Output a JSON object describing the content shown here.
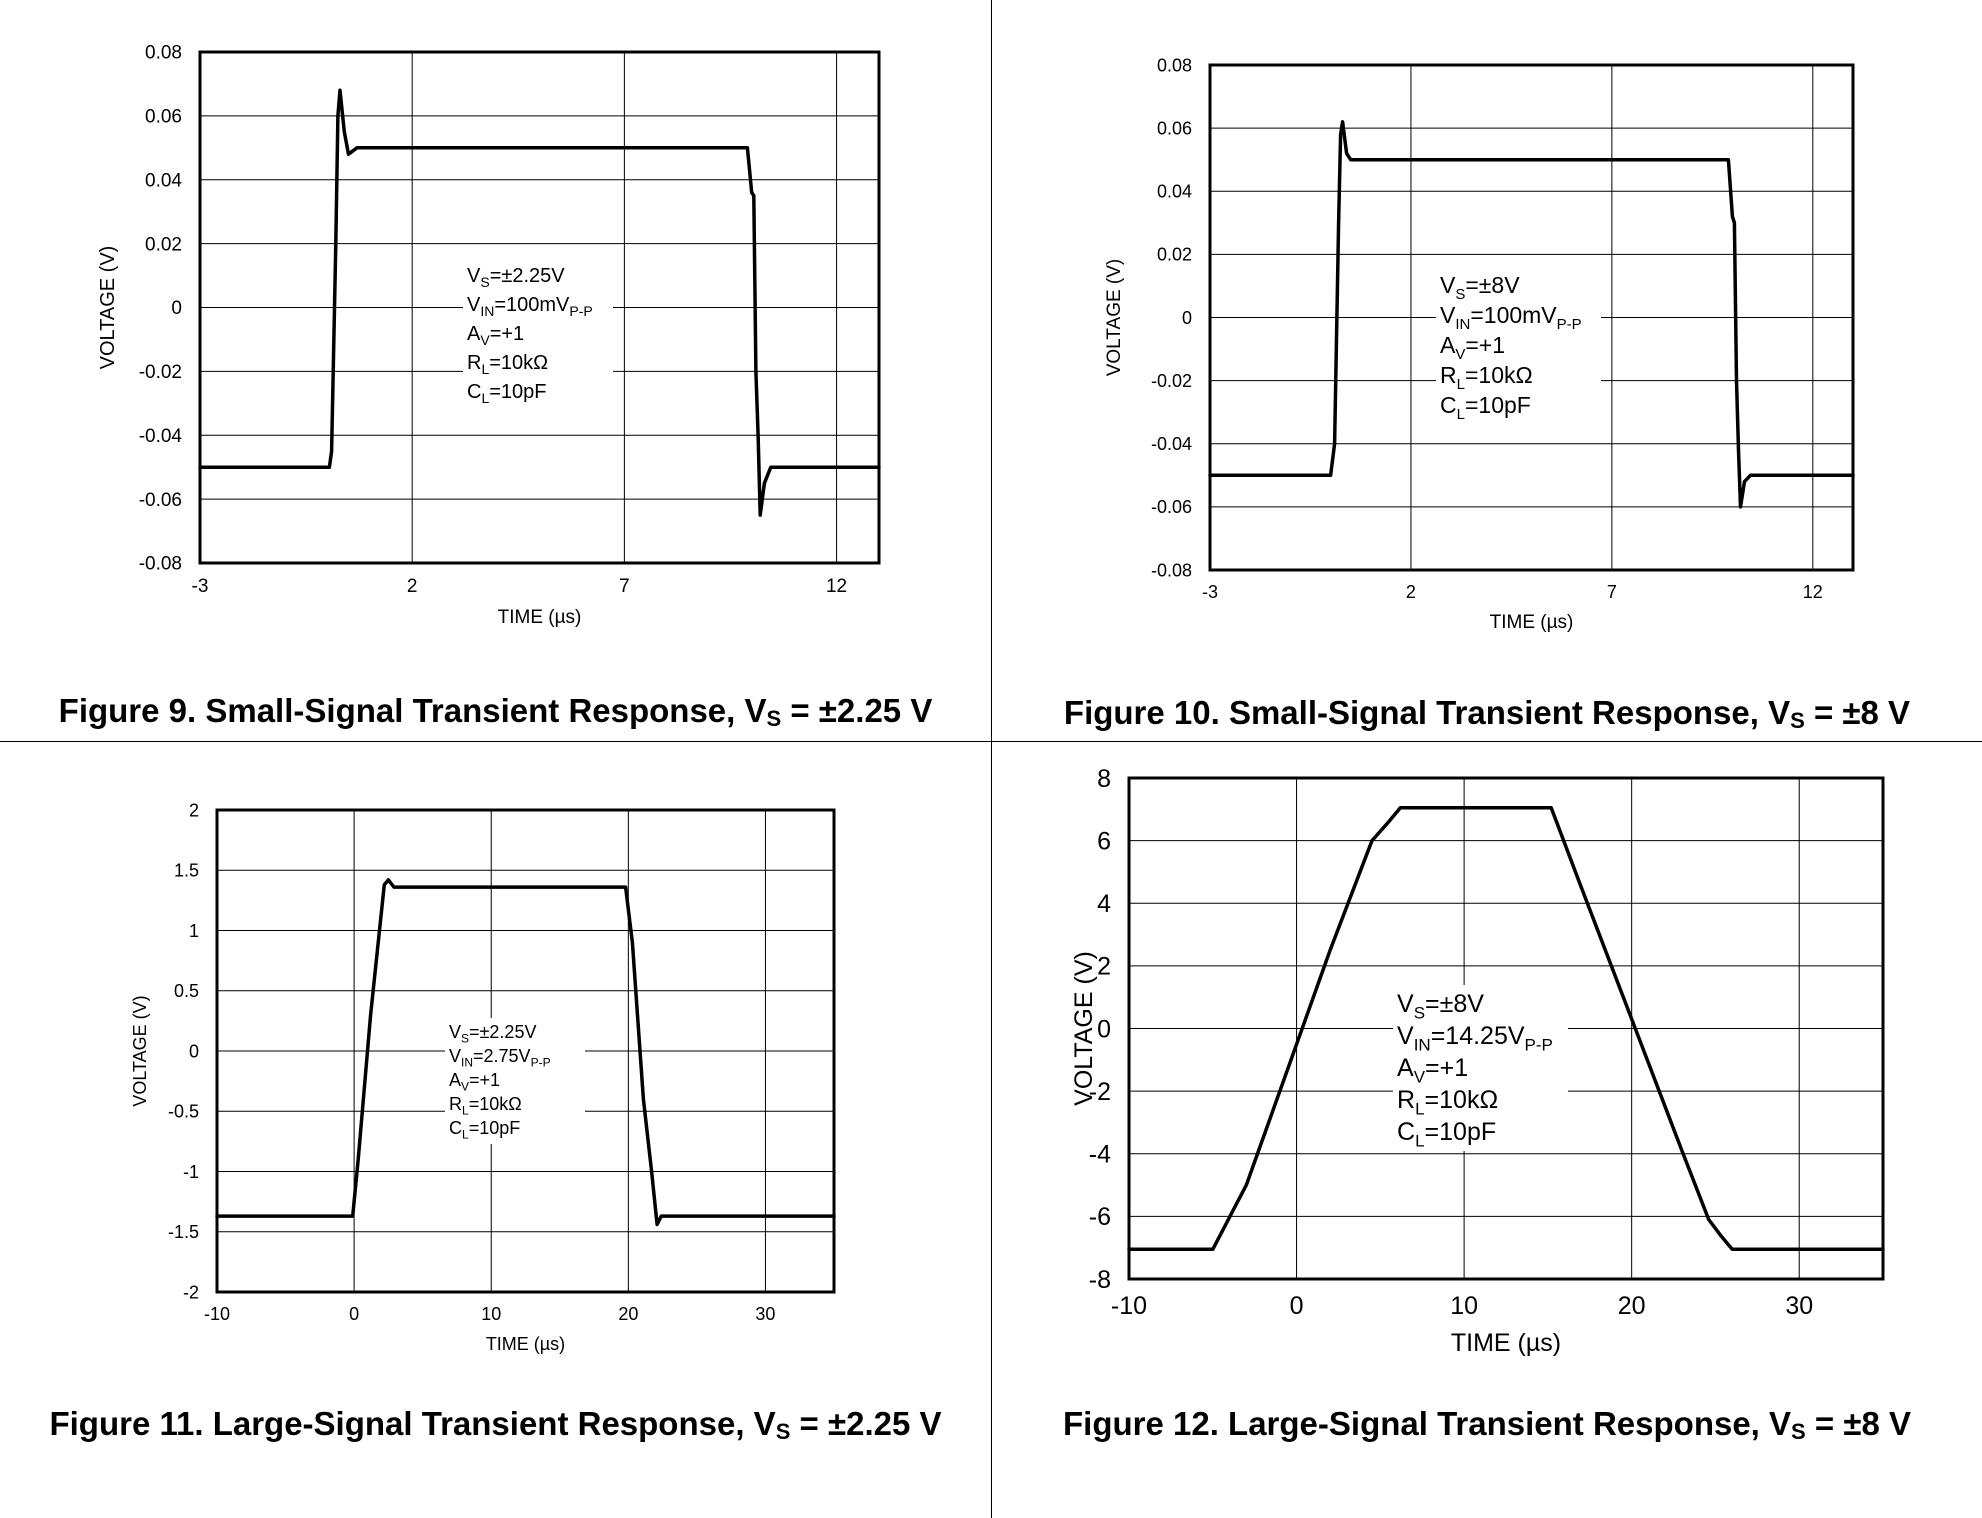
{
  "captions": [
    {
      "prefix": "Figure 9. Small-Signal Transient Response, V",
      "sub": "S",
      "suffix": " = ±2.25 V"
    },
    {
      "prefix": "Figure 10. Small-Signal Transient Response, V",
      "sub": "S",
      "suffix": " = ±8 V"
    },
    {
      "prefix": "Figure 11. Large-Signal Transient Response, V",
      "sub": "S",
      "suffix": " = ±2.25 V"
    },
    {
      "prefix": "Figure 12. Large-Signal Transient Response, V",
      "sub": "S",
      "suffix": " = ±8 V"
    }
  ],
  "chart_data": [
    {
      "type": "line",
      "xlabel": "TIME (µs)",
      "ylabel": "VOLTAGE (V)",
      "xlim": [
        -3,
        13
      ],
      "ylim": [
        -0.08,
        0.08
      ],
      "xticks": [
        -3,
        2,
        7,
        12
      ],
      "xtick_labels": [
        "-3",
        "2",
        "7",
        "12"
      ],
      "yticks": [
        -0.08,
        -0.06,
        -0.04,
        -0.02,
        0,
        0.02,
        0.04,
        0.06,
        0.08
      ],
      "ytick_labels": [
        "-0.08",
        "-0.06",
        "-0.04",
        "-0.02",
        "0",
        "0.02",
        "0.04",
        "0.06",
        "0.08"
      ],
      "grid": true,
      "annotation": [
        {
          "main": "V",
          "sub": "S",
          "rest": "=±2.25V"
        },
        {
          "main": "V",
          "sub": "IN",
          "rest": "=100mV",
          "sub2": "P-P"
        },
        {
          "main": "A",
          "sub": "V",
          "rest": "=+1"
        },
        {
          "main": "R",
          "sub": "L",
          "rest": "=10kΩ"
        },
        {
          "main": "C",
          "sub": "L",
          "rest": "=10pF"
        }
      ],
      "series": [
        {
          "x": [
            -3,
            0.05,
            0.1,
            0.2,
            0.25,
            0.3,
            0.4,
            0.5,
            0.7,
            1.0,
            3.0,
            5.0,
            7.0,
            9.0,
            9.9,
            10.0,
            10.05,
            10.1,
            10.15,
            10.2,
            10.3,
            10.45,
            10.6,
            11,
            13
          ],
          "y": [
            -0.05,
            -0.05,
            -0.045,
            0.02,
            0.06,
            0.068,
            0.055,
            0.048,
            0.05,
            0.05,
            0.05,
            0.05,
            0.05,
            0.05,
            0.05,
            0.036,
            0.035,
            -0.02,
            -0.04,
            -0.065,
            -0.055,
            -0.05,
            -0.05,
            -0.05,
            -0.05
          ]
        }
      ]
    },
    {
      "type": "line",
      "xlabel": "TIME (µs)",
      "ylabel": "VOLTAGE (V)",
      "xlim": [
        -3,
        13
      ],
      "ylim": [
        -0.08,
        0.08
      ],
      "xticks": [
        -3,
        2,
        7,
        12
      ],
      "xtick_labels": [
        "-3",
        "2",
        "7",
        "12"
      ],
      "yticks": [
        -0.08,
        -0.06,
        -0.04,
        -0.02,
        0,
        0.02,
        0.04,
        0.06,
        0.08
      ],
      "ytick_labels": [
        "-0.08",
        "-0.06",
        "-0.04",
        "-0.02",
        "0",
        "0.02",
        "0.04",
        "0.06",
        "0.08"
      ],
      "grid": true,
      "annotation": [
        {
          "main": "V",
          "sub": "S",
          "rest": "=±8V"
        },
        {
          "main": "V",
          "sub": "IN",
          "rest": "=100mV",
          "sub2": "P-P"
        },
        {
          "main": "A",
          "sub": "V",
          "rest": "=+1"
        },
        {
          "main": "R",
          "sub": "L",
          "rest": "=10kΩ"
        },
        {
          "main": "C",
          "sub": "L",
          "rest": "=10pF"
        }
      ],
      "series": [
        {
          "x": [
            -3,
            0,
            0.1,
            0.2,
            0.25,
            0.3,
            0.4,
            0.5,
            1.0,
            3.0,
            5.0,
            7.0,
            9.0,
            9.9,
            10.0,
            10.05,
            10.1,
            10.15,
            10.2,
            10.3,
            10.45,
            10.6,
            11,
            13
          ],
          "y": [
            -0.05,
            -0.05,
            -0.04,
            0.03,
            0.058,
            0.062,
            0.052,
            0.05,
            0.05,
            0.05,
            0.05,
            0.05,
            0.05,
            0.05,
            0.032,
            0.03,
            -0.02,
            -0.042,
            -0.06,
            -0.052,
            -0.05,
            -0.05,
            -0.05,
            -0.05
          ]
        }
      ]
    },
    {
      "type": "line",
      "xlabel": "TIME (µs)",
      "ylabel": "VOLTAGE (V)",
      "xlim": [
        -10,
        35
      ],
      "ylim": [
        -2,
        2
      ],
      "xticks": [
        -10,
        0,
        10,
        20,
        30
      ],
      "xtick_labels": [
        "-10",
        "0",
        "10",
        "20",
        "30"
      ],
      "yticks": [
        -2,
        -1.5,
        -1,
        -0.5,
        0,
        0.5,
        1,
        1.5,
        2
      ],
      "ytick_labels": [
        "-2",
        "-1.5",
        "-1",
        "-0.5",
        "0",
        "0.5",
        "1",
        "1.5",
        "2"
      ],
      "grid": true,
      "annotation": [
        {
          "main": "V",
          "sub": "S",
          "rest": "=±2.25V"
        },
        {
          "main": "V",
          "sub": "IN",
          "rest": "=2.75V",
          "sub2": "P-P"
        },
        {
          "main": "A",
          "sub": "V",
          "rest": "=+1"
        },
        {
          "main": "R",
          "sub": "L",
          "rest": "=10kΩ"
        },
        {
          "main": "C",
          "sub": "L",
          "rest": "=10pF"
        }
      ],
      "series": [
        {
          "x": [
            -10,
            -0.1,
            0.3,
            1.2,
            2.2,
            2.5,
            2.9,
            3.5,
            10,
            19.8,
            20.3,
            21.1,
            21.7,
            22.1,
            22.4,
            35
          ],
          "y": [
            -1.37,
            -1.37,
            -0.9,
            0.3,
            1.38,
            1.42,
            1.36,
            1.36,
            1.36,
            1.36,
            0.9,
            -0.4,
            -1.0,
            -1.44,
            -1.37,
            -1.37
          ]
        }
      ]
    },
    {
      "type": "line",
      "xlabel": "TIME (µs)",
      "ylabel": "VOLTAGE (V)",
      "xlim": [
        -10,
        35
      ],
      "ylim": [
        -8,
        8
      ],
      "xticks": [
        -10,
        0,
        10,
        20,
        30
      ],
      "xtick_labels": [
        "-10",
        "0",
        "10",
        "20",
        "30"
      ],
      "yticks": [
        -8,
        -6,
        -4,
        -2,
        0,
        2,
        4,
        6,
        8
      ],
      "ytick_labels": [
        "-8",
        "-6",
        "-4",
        "-2",
        "0",
        "2",
        "4",
        "6",
        "8"
      ],
      "grid": true,
      "annotation": [
        {
          "main": "V",
          "sub": "S",
          "rest": "=±8V"
        },
        {
          "main": "V",
          "sub": "IN",
          "rest": "=14.25V",
          "sub2": "P-P"
        },
        {
          "main": "A",
          "sub": "V",
          "rest": "=+1"
        },
        {
          "main": "R",
          "sub": "L",
          "rest": "=10kΩ"
        },
        {
          "main": "C",
          "sub": "L",
          "rest": "=10pF"
        }
      ],
      "series": [
        {
          "x": [
            -10,
            -5,
            -3,
            0,
            2,
            4.5,
            5.5,
            6.2,
            10,
            15.2,
            17,
            20,
            23,
            24.6,
            25.3,
            26,
            35
          ],
          "y": [
            -7.05,
            -7.05,
            -5,
            -0.5,
            2.5,
            6,
            6.6,
            7.05,
            7.05,
            7.05,
            4.5,
            0.3,
            -3.9,
            -6.1,
            -6.6,
            -7.05,
            -7.05
          ]
        }
      ]
    }
  ]
}
